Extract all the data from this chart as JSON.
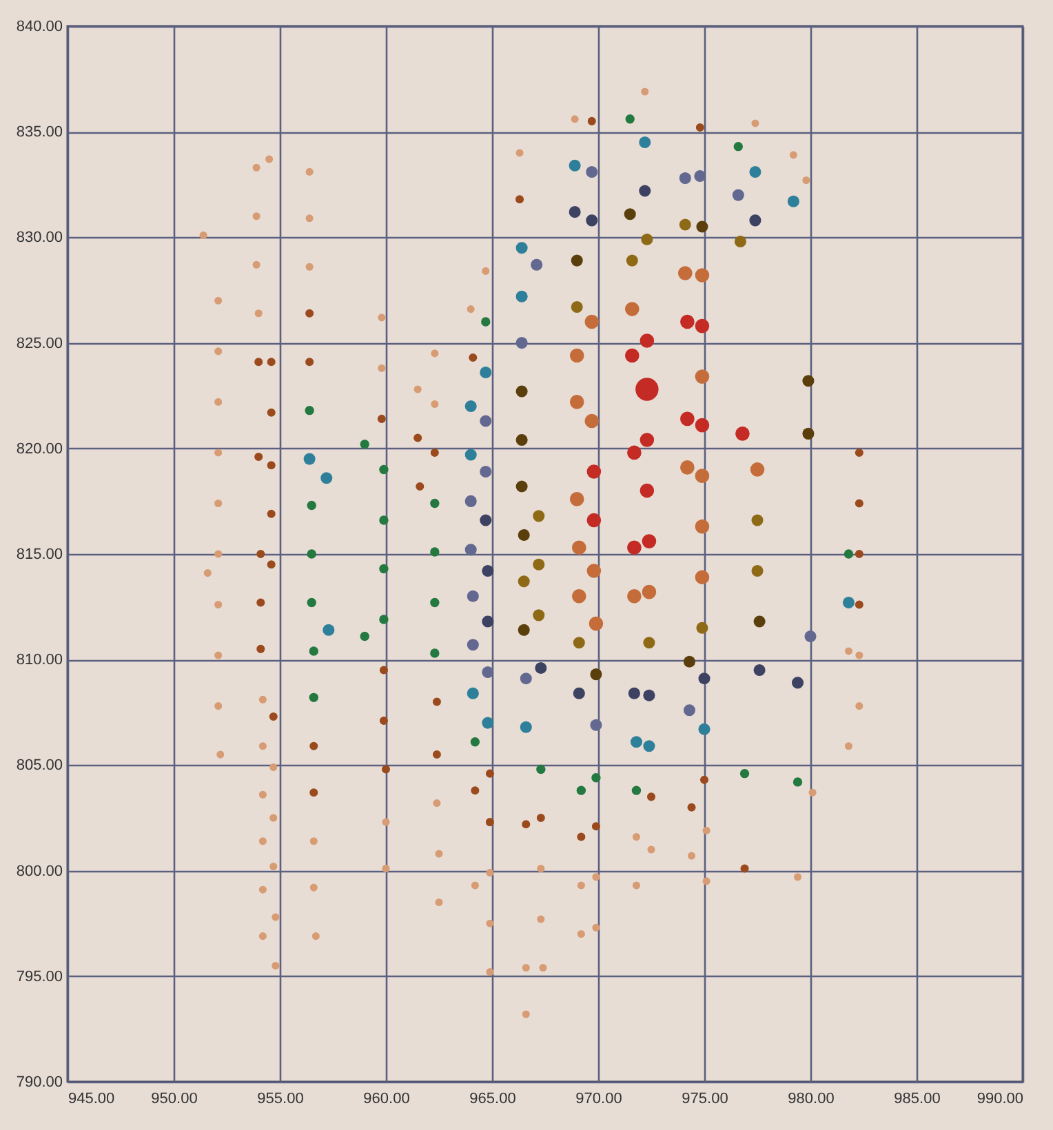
{
  "chart_data": {
    "type": "bubble",
    "marker": "circle",
    "grid": true,
    "legend": false,
    "xlim": [
      945,
      990
    ],
    "xticks": [
      {
        "value": 945,
        "label": "945.00"
      },
      {
        "value": 950,
        "label": "950.00"
      },
      {
        "value": 955,
        "label": "955.00"
      },
      {
        "value": 960,
        "label": "960.00"
      },
      {
        "value": 965,
        "label": "965.00"
      },
      {
        "value": 970,
        "label": "970.00"
      },
      {
        "value": 975,
        "label": "975.00"
      },
      {
        "value": 980,
        "label": "980.00"
      },
      {
        "value": 985,
        "label": "985.00"
      },
      {
        "value": 990,
        "label": "990.00"
      }
    ],
    "ylim": [
      790,
      840
    ],
    "yticks": [
      {
        "value": 790,
        "label": "790.00"
      },
      {
        "value": 795,
        "label": "795.00"
      },
      {
        "value": 800,
        "label": "800.00"
      },
      {
        "value": 805,
        "label": "805.00"
      },
      {
        "value": 810,
        "label": "810.00"
      },
      {
        "value": 815,
        "label": "815.00"
      },
      {
        "value": 820,
        "label": "820.00"
      },
      {
        "value": 825,
        "label": "825.00"
      },
      {
        "value": 830,
        "label": "830.00"
      },
      {
        "value": 835,
        "label": "835.00"
      },
      {
        "value": 840,
        "label": "840.00"
      }
    ],
    "series": [
      {
        "color": "#d89c74",
        "x": [
          951.4,
          952.1,
          952.1,
          952.1,
          952.1,
          952.1,
          952.1,
          951.6,
          952.1,
          952.1,
          952.1,
          952.2,
          953.9,
          954.5,
          953.9,
          953.9,
          954.0,
          956.4,
          956.4,
          956.4,
          959.8,
          959.8,
          961.5,
          962.3,
          962.3,
          972.2,
          968.9,
          966.3,
          964.7,
          964.0,
          977.4,
          979.2,
          979.8,
          954.2,
          954.2,
          954.7,
          954.2,
          954.7,
          954.2,
          954.7,
          954.2,
          954.8,
          954.2,
          954.8,
          956.6,
          956.6,
          956.7,
          960.0,
          960.0,
          962.4,
          962.5,
          962.5,
          971.8,
          972.5,
          974.4,
          975.1,
          975.1,
          971.8,
          969.9,
          969.2,
          969.9,
          969.2,
          967.3,
          967.3,
          967.4,
          966.6,
          966.6,
          964.9,
          964.2,
          964.9,
          964.9,
          981.8,
          982.3,
          982.3,
          981.8,
          980.1,
          979.4
        ],
        "values": [
          830.1,
          827.0,
          824.6,
          822.2,
          819.8,
          817.4,
          815.0,
          814.1,
          812.6,
          810.2,
          807.8,
          805.5,
          833.3,
          833.7,
          831.0,
          828.7,
          826.4,
          833.1,
          830.9,
          828.6,
          826.2,
          823.8,
          822.8,
          824.5,
          822.1,
          836.9,
          835.6,
          834.0,
          828.4,
          826.6,
          835.4,
          833.9,
          832.7,
          808.1,
          805.9,
          804.9,
          803.6,
          802.5,
          801.4,
          800.2,
          799.1,
          797.8,
          796.9,
          795.5,
          801.4,
          799.2,
          796.9,
          802.3,
          800.1,
          803.2,
          800.8,
          798.5,
          801.6,
          801.0,
          800.7,
          801.9,
          799.5,
          799.3,
          799.7,
          799.3,
          797.3,
          797.0,
          800.1,
          797.7,
          795.4,
          795.4,
          793.2,
          799.9,
          799.3,
          797.5,
          795.2,
          810.4,
          810.2,
          807.8,
          805.9,
          803.7,
          799.7
        ],
        "sizes": [
          0.11,
          0.11,
          0.11,
          0.11,
          0.11,
          0.11,
          0.11,
          0.11,
          0.11,
          0.11,
          0.11,
          0.11,
          0.11,
          0.11,
          0.11,
          0.11,
          0.11,
          0.11,
          0.11,
          0.11,
          0.11,
          0.11,
          0.11,
          0.11,
          0.11,
          0.11,
          0.11,
          0.11,
          0.11,
          0.11,
          0.11,
          0.11,
          0.11,
          0.11,
          0.11,
          0.11,
          0.11,
          0.11,
          0.11,
          0.11,
          0.11,
          0.11,
          0.11,
          0.11,
          0.11,
          0.11,
          0.11,
          0.11,
          0.11,
          0.11,
          0.11,
          0.11,
          0.11,
          0.11,
          0.11,
          0.11,
          0.11,
          0.11,
          0.11,
          0.11,
          0.11,
          0.11,
          0.11,
          0.11,
          0.11,
          0.11,
          0.11,
          0.11,
          0.11,
          0.11,
          0.11,
          0.11,
          0.11,
          0.11,
          0.11,
          0.11,
          0.11
        ]
      },
      {
        "color": "#9a4a1c",
        "x": [
          956.4,
          954.0,
          954.6,
          956.4,
          954.6,
          959.8,
          961.5,
          962.3,
          954.0,
          954.6,
          954.6,
          961.6,
          954.1,
          954.6,
          964.1,
          954.1,
          954.1,
          954.7,
          956.6,
          956.6,
          959.9,
          959.9,
          960.0,
          962.4,
          962.4,
          969.7,
          966.3,
          974.8,
          964.9,
          964.2,
          964.9,
          966.6,
          967.3,
          969.9,
          969.2,
          972.5,
          974.4,
          975.0,
          982.3,
          976.9,
          982.3,
          982.3,
          982.3
        ],
        "values": [
          826.4,
          824.1,
          824.1,
          824.1,
          821.7,
          821.4,
          820.5,
          819.8,
          819.6,
          819.2,
          816.9,
          818.2,
          815.0,
          814.5,
          824.3,
          812.7,
          810.5,
          807.3,
          805.9,
          803.7,
          809.5,
          807.1,
          804.8,
          808.0,
          805.5,
          835.5,
          831.8,
          835.2,
          804.6,
          803.8,
          802.3,
          802.2,
          802.5,
          802.1,
          801.6,
          803.5,
          803.0,
          804.3,
          812.6,
          800.1,
          819.8,
          817.4,
          815.0
        ],
        "sizes": [
          0.13,
          0.13,
          0.13,
          0.13,
          0.13,
          0.13,
          0.13,
          0.13,
          0.13,
          0.13,
          0.13,
          0.13,
          0.13,
          0.13,
          0.13,
          0.13,
          0.13,
          0.13,
          0.13,
          0.13,
          0.13,
          0.13,
          0.13,
          0.13,
          0.13,
          0.13,
          0.13,
          0.13,
          0.13,
          0.13,
          0.13,
          0.13,
          0.13,
          0.13,
          0.13,
          0.13,
          0.13,
          0.13,
          0.13,
          0.13,
          0.13,
          0.13,
          0.13
        ]
      },
      {
        "color": "#23793f",
        "x": [
          956.4,
          959.0,
          959.9,
          956.5,
          959.9,
          956.5,
          959.9,
          962.3,
          962.3,
          956.5,
          962.3,
          959.9,
          959.0,
          956.6,
          962.3,
          956.6,
          971.5,
          964.7,
          976.6,
          964.2,
          967.3,
          969.9,
          969.2,
          971.8,
          976.9,
          979.4,
          981.8
        ],
        "values": [
          821.8,
          820.2,
          819.0,
          817.3,
          816.6,
          815.0,
          814.3,
          817.4,
          815.1,
          812.7,
          812.7,
          811.9,
          811.1,
          810.4,
          810.3,
          808.2,
          835.6,
          826.0,
          834.3,
          806.1,
          804.8,
          804.4,
          803.8,
          803.8,
          804.6,
          804.2,
          815.0
        ],
        "sizes": [
          0.16,
          0.16,
          0.16,
          0.16,
          0.16,
          0.16,
          0.16,
          0.16,
          0.16,
          0.16,
          0.16,
          0.16,
          0.16,
          0.16,
          0.16,
          0.16,
          0.16,
          0.16,
          0.16,
          0.16,
          0.16,
          0.16,
          0.16,
          0.16,
          0.16,
          0.16,
          0.16
        ]
      },
      {
        "color": "#2e809a",
        "x": [
          956.4,
          957.2,
          957.3,
          972.2,
          968.9,
          966.4,
          966.4,
          964.7,
          964.0,
          964.0,
          977.4,
          979.2,
          964.1,
          964.8,
          966.6,
          971.8,
          972.4,
          975.0,
          981.8
        ],
        "values": [
          819.5,
          818.6,
          811.4,
          834.5,
          833.4,
          829.5,
          827.2,
          823.6,
          822.0,
          819.7,
          833.1,
          831.7,
          808.4,
          807.0,
          806.8,
          806.1,
          805.9,
          806.7,
          812.7
        ],
        "sizes": [
          0.26,
          0.26,
          0.26,
          0.26,
          0.26,
          0.26,
          0.26,
          0.26,
          0.26,
          0.26,
          0.26,
          0.26,
          0.26,
          0.26,
          0.26,
          0.26,
          0.26,
          0.26,
          0.26
        ]
      },
      {
        "color": "#626890",
        "x": [
          969.7,
          974.1,
          974.8,
          967.1,
          966.4,
          964.7,
          964.7,
          964.0,
          964.0,
          976.6,
          964.1,
          964.1,
          964.8,
          966.6,
          969.9,
          974.3,
          980.0
        ],
        "values": [
          833.1,
          832.8,
          832.9,
          828.7,
          825.0,
          821.3,
          818.9,
          817.5,
          815.2,
          832.0,
          813.0,
          810.7,
          809.4,
          809.1,
          806.9,
          807.6,
          811.1
        ],
        "sizes": [
          0.26,
          0.26,
          0.26,
          0.26,
          0.26,
          0.26,
          0.26,
          0.26,
          0.26,
          0.26,
          0.26,
          0.26,
          0.26,
          0.26,
          0.26,
          0.26,
          0.26
        ]
      },
      {
        "color": "#3d4262",
        "x": [
          972.2,
          968.9,
          969.7,
          964.7,
          964.8,
          977.4,
          964.8,
          967.3,
          969.1,
          971.7,
          972.4,
          975.0,
          977.6,
          979.4
        ],
        "values": [
          832.2,
          831.2,
          830.8,
          816.6,
          814.2,
          830.8,
          811.8,
          809.6,
          808.4,
          808.4,
          808.3,
          809.1,
          809.5,
          808.9
        ],
        "sizes": [
          0.26,
          0.26,
          0.26,
          0.26,
          0.26,
          0.26,
          0.26,
          0.26,
          0.26,
          0.26,
          0.26,
          0.26,
          0.26,
          0.26
        ]
      },
      {
        "color": "#5a3f0c",
        "x": [
          971.5,
          974.9,
          969.0,
          966.4,
          966.4,
          966.4,
          966.5,
          966.5,
          969.9,
          974.3,
          977.6,
          979.9,
          979.9
        ],
        "values": [
          831.1,
          830.5,
          828.9,
          822.7,
          820.4,
          818.2,
          815.9,
          811.4,
          809.3,
          809.9,
          811.8,
          823.2,
          820.7
        ],
        "sizes": [
          0.26,
          0.26,
          0.26,
          0.26,
          0.26,
          0.26,
          0.26,
          0.26,
          0.26,
          0.26,
          0.26,
          0.26,
          0.26
        ]
      },
      {
        "color": "#8f6a16",
        "x": [
          974.1,
          972.3,
          971.6,
          969.0,
          967.2,
          967.2,
          966.5,
          967.2,
          969.1,
          972.4,
          974.9,
          977.5,
          976.7,
          977.5
        ],
        "values": [
          830.6,
          829.9,
          828.9,
          826.7,
          816.8,
          814.5,
          813.7,
          812.1,
          810.8,
          810.8,
          811.5,
          814.2,
          829.8,
          816.6
        ],
        "sizes": [
          0.26,
          0.26,
          0.26,
          0.26,
          0.26,
          0.26,
          0.26,
          0.26,
          0.26,
          0.26,
          0.26,
          0.26,
          0.26,
          0.26
        ]
      },
      {
        "color": "#c46d3a",
        "x": [
          974.1,
          974.9,
          971.6,
          969.7,
          969.0,
          974.9,
          969.0,
          969.7,
          974.2,
          974.9,
          969.0,
          974.9,
          969.1,
          969.8,
          977.5,
          974.9,
          969.1,
          971.7,
          972.4,
          969.9
        ],
        "values": [
          828.3,
          828.2,
          826.6,
          826.0,
          824.4,
          823.4,
          822.2,
          821.3,
          819.1,
          818.7,
          817.6,
          816.3,
          815.3,
          814.2,
          819.0,
          813.9,
          813.0,
          813.0,
          813.2,
          811.7
        ],
        "sizes": [
          0.38,
          0.38,
          0.38,
          0.38,
          0.38,
          0.38,
          0.38,
          0.38,
          0.38,
          0.38,
          0.38,
          0.38,
          0.38,
          0.38,
          0.38,
          0.38,
          0.38,
          0.38,
          0.38,
          0.38
        ]
      },
      {
        "color": "#c32b24",
        "x": [
          974.2,
          974.9,
          972.3,
          971.6,
          972.3,
          974.2,
          974.9,
          972.3,
          971.7,
          969.8,
          972.3,
          969.8,
          971.7,
          972.4,
          976.8
        ],
        "values": [
          826.0,
          825.8,
          825.1,
          824.4,
          822.8,
          821.4,
          821.1,
          820.4,
          819.8,
          818.9,
          818.0,
          816.6,
          815.3,
          815.6,
          820.7
        ],
        "sizes": [
          0.38,
          0.38,
          0.38,
          0.38,
          1,
          0.38,
          0.38,
          0.38,
          0.38,
          0.38,
          0.38,
          0.38,
          0.38,
          0.38,
          0.38
        ]
      }
    ]
  }
}
